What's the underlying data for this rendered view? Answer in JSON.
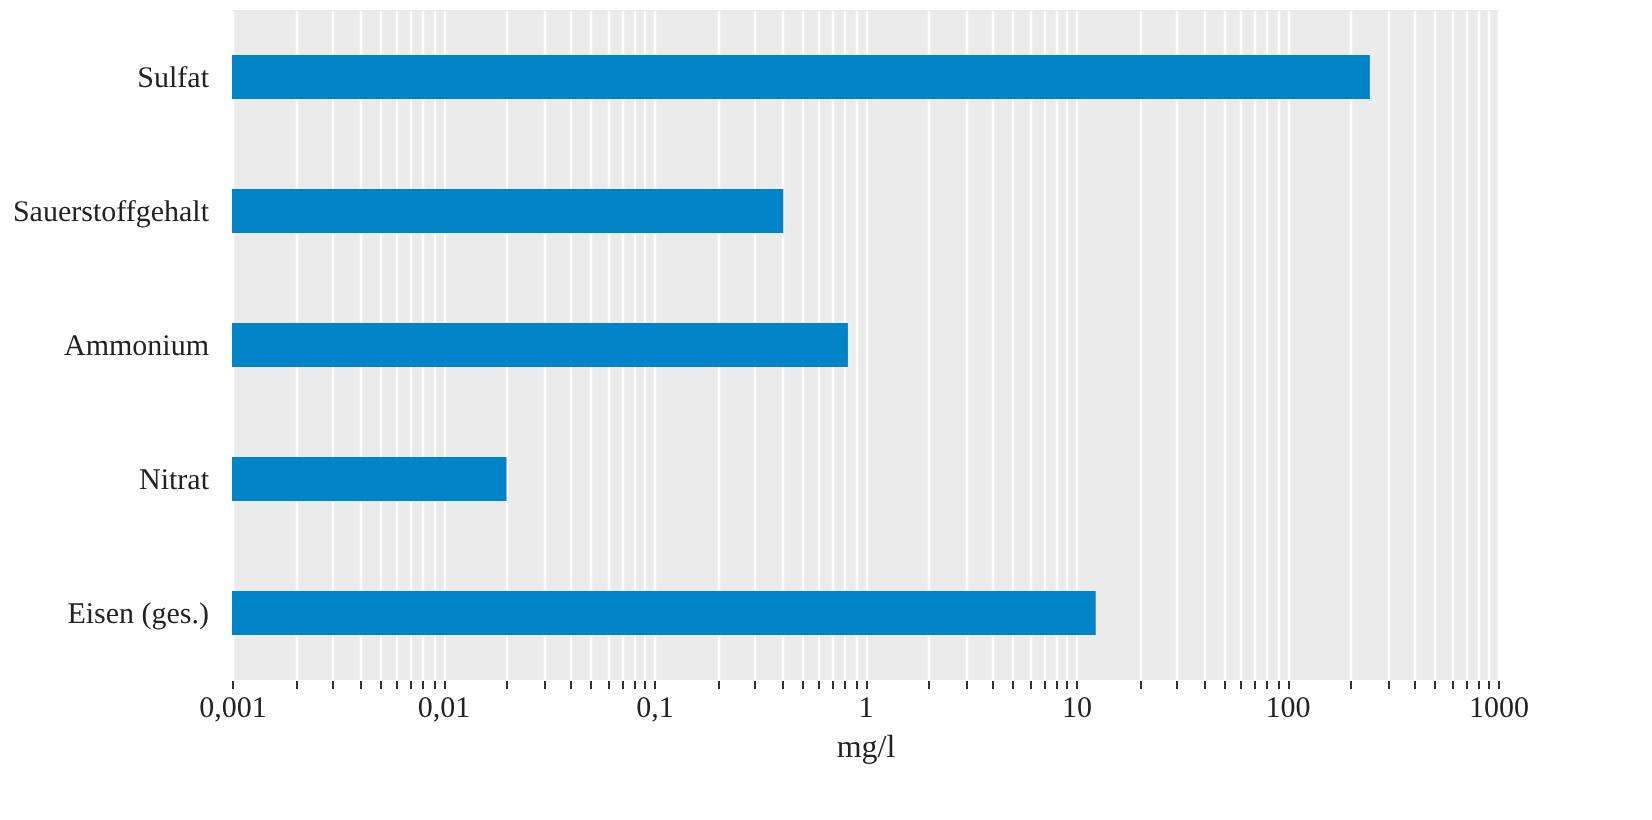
{
  "chart_data": {
    "type": "bar",
    "orientation": "horizontal",
    "log": "x",
    "grid": "x",
    "xlabel": "mg/l",
    "categories": [
      "Sulfat",
      "Sauerstoffgehalt",
      "Ammonium",
      "Nitrat",
      "Eisen (ges.)"
    ],
    "values": [
      247,
      0.41,
      0.83,
      0.02,
      12.4
    ],
    "color": "#0083c7",
    "xlim": [
      0.001,
      1000
    ],
    "xticks": [
      {
        "value": 0.001,
        "label": "0,001"
      },
      {
        "value": 0.002,
        "label": null
      },
      {
        "value": 0.003,
        "label": null
      },
      {
        "value": 0.004,
        "label": null
      },
      {
        "value": 0.005,
        "label": null
      },
      {
        "value": 0.006,
        "label": null
      },
      {
        "value": 0.007,
        "label": null
      },
      {
        "value": 0.008,
        "label": null
      },
      {
        "value": 0.009,
        "label": null
      },
      {
        "value": 0.01,
        "label": "0,01"
      },
      {
        "value": 0.02,
        "label": null
      },
      {
        "value": 0.03,
        "label": null
      },
      {
        "value": 0.04,
        "label": null
      },
      {
        "value": 0.05,
        "label": null
      },
      {
        "value": 0.06,
        "label": null
      },
      {
        "value": 0.07,
        "label": null
      },
      {
        "value": 0.08,
        "label": null
      },
      {
        "value": 0.09,
        "label": null
      },
      {
        "value": 0.1,
        "label": "0,1"
      },
      {
        "value": 0.2,
        "label": null
      },
      {
        "value": 0.3,
        "label": null
      },
      {
        "value": 0.4,
        "label": null
      },
      {
        "value": 0.5,
        "label": null
      },
      {
        "value": 0.6,
        "label": null
      },
      {
        "value": 0.7,
        "label": null
      },
      {
        "value": 0.8,
        "label": null
      },
      {
        "value": 0.9,
        "label": null
      },
      1,
      {
        "value": 2,
        "label": null
      },
      {
        "value": 3,
        "label": null
      },
      {
        "value": 4,
        "label": null
      },
      {
        "value": 5,
        "label": null
      },
      {
        "value": 6,
        "label": null
      },
      {
        "value": 7,
        "label": null
      },
      {
        "value": 8,
        "label": null
      },
      {
        "value": 9,
        "label": null
      },
      10,
      {
        "value": 20,
        "label": null
      },
      {
        "value": 30,
        "label": null
      },
      {
        "value": 40,
        "label": null
      },
      {
        "value": 50,
        "label": null
      },
      {
        "value": 60,
        "label": null
      },
      {
        "value": 70,
        "label": null
      },
      {
        "value": 80,
        "label": null
      },
      {
        "value": 90,
        "label": null
      },
      100,
      {
        "value": 200,
        "label": null
      },
      {
        "value": 300,
        "label": null
      },
      {
        "value": 400,
        "label": null
      },
      {
        "value": 500,
        "label": null
      },
      {
        "value": 600,
        "label": null
      },
      {
        "value": 700,
        "label": null
      },
      {
        "value": 800,
        "label": null
      },
      {
        "value": 900,
        "label": null
      },
      1000
    ]
  }
}
